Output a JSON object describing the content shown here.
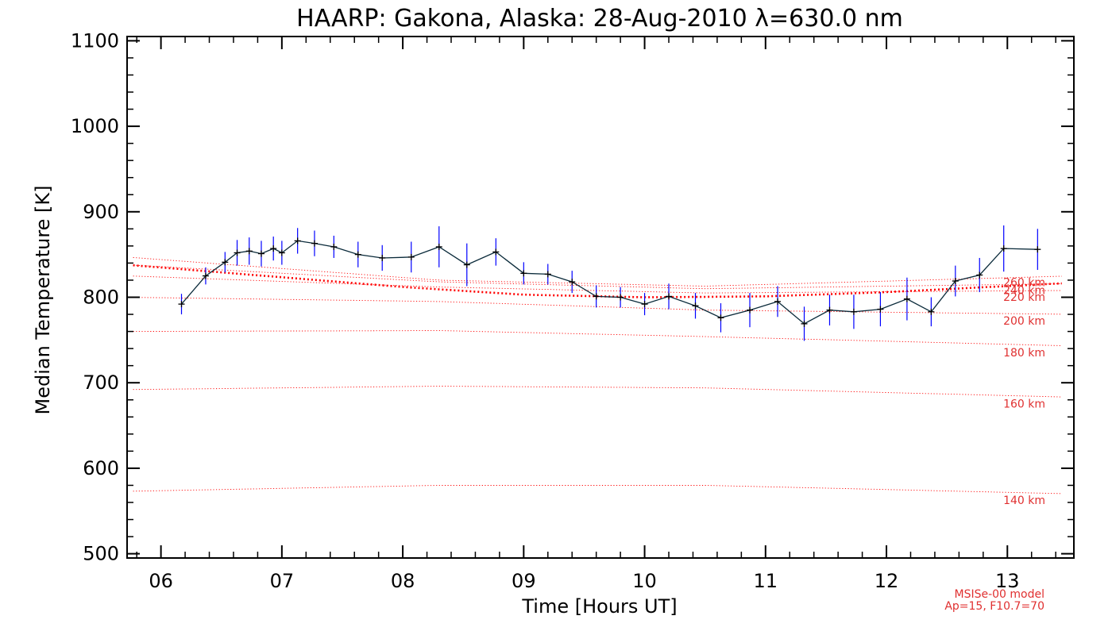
{
  "chart_data": {
    "type": "line",
    "title": "HAARP: Gakona,  Alaska: 28-Aug-2010 λ=630.0 nm",
    "xlabel": "Time [Hours UT]",
    "ylabel": "Median Temperature [K]",
    "xlim": [
      5.72,
      13.55
    ],
    "ylim": [
      495,
      1105
    ],
    "x_ticks": [
      6,
      7,
      8,
      9,
      10,
      11,
      12,
      13
    ],
    "x_tick_labels": [
      "06",
      "07",
      "08",
      "09",
      "10",
      "11",
      "12",
      "13"
    ],
    "y_ticks": [
      500,
      600,
      700,
      800,
      900,
      1000,
      1100
    ],
    "y_tick_labels": [
      "500",
      "600",
      "700",
      "800",
      "900",
      "1000",
      "1100"
    ],
    "grid": false,
    "series": [
      {
        "style": "line with crosses and vertical error bars",
        "colors": {
          "line": "#000000",
          "error_bars": "#0000ff"
        },
        "points": [
          {
            "x": 6.17,
            "y": 792,
            "err": 12
          },
          {
            "x": 6.37,
            "y": 825,
            "err": 10
          },
          {
            "x": 6.53,
            "y": 841,
            "err": 12
          },
          {
            "x": 6.63,
            "y": 852,
            "err": 15
          },
          {
            "x": 6.73,
            "y": 854,
            "err": 16
          },
          {
            "x": 6.83,
            "y": 851,
            "err": 15
          },
          {
            "x": 6.93,
            "y": 857,
            "err": 14
          },
          {
            "x": 7.0,
            "y": 852,
            "err": 14
          },
          {
            "x": 7.13,
            "y": 866,
            "err": 15
          },
          {
            "x": 7.27,
            "y": 863,
            "err": 15
          },
          {
            "x": 7.43,
            "y": 859,
            "err": 13
          },
          {
            "x": 7.63,
            "y": 850,
            "err": 15
          },
          {
            "x": 7.83,
            "y": 846,
            "err": 15
          },
          {
            "x": 8.07,
            "y": 847,
            "err": 18
          },
          {
            "x": 8.3,
            "y": 859,
            "err": 24
          },
          {
            "x": 8.53,
            "y": 838,
            "err": 25
          },
          {
            "x": 8.77,
            "y": 853,
            "err": 16
          },
          {
            "x": 9.0,
            "y": 828,
            "err": 13
          },
          {
            "x": 9.2,
            "y": 827,
            "err": 12
          },
          {
            "x": 9.4,
            "y": 818,
            "err": 13
          },
          {
            "x": 9.6,
            "y": 801,
            "err": 13
          },
          {
            "x": 9.8,
            "y": 800,
            "err": 12
          },
          {
            "x": 10.0,
            "y": 792,
            "err": 13
          },
          {
            "x": 10.2,
            "y": 801,
            "err": 15
          },
          {
            "x": 10.42,
            "y": 790,
            "err": 15
          },
          {
            "x": 10.63,
            "y": 776,
            "err": 17
          },
          {
            "x": 10.87,
            "y": 785,
            "err": 20
          },
          {
            "x": 11.1,
            "y": 795,
            "err": 18
          },
          {
            "x": 11.32,
            "y": 769,
            "err": 20
          },
          {
            "x": 11.53,
            "y": 785,
            "err": 18
          },
          {
            "x": 11.73,
            "y": 783,
            "err": 20
          },
          {
            "x": 11.95,
            "y": 786,
            "err": 20
          },
          {
            "x": 12.17,
            "y": 798,
            "err": 25
          },
          {
            "x": 12.37,
            "y": 783,
            "err": 17
          },
          {
            "x": 12.57,
            "y": 819,
            "err": 18
          },
          {
            "x": 12.77,
            "y": 826,
            "err": 20
          },
          {
            "x": 12.97,
            "y": 857,
            "err": 27
          },
          {
            "x": 13.25,
            "y": 856,
            "err": 24
          }
        ]
      }
    ],
    "model": {
      "color": "#ff0000",
      "line_style": "dotted",
      "x": [
        5.72,
        8.3,
        10.5,
        13.55
      ],
      "altitude_curves": [
        {
          "label": "140 km",
          "values": [
            573,
            580,
            580,
            570
          ]
        },
        {
          "label": "160 km",
          "values": [
            692,
            696,
            694,
            683
          ]
        },
        {
          "label": "180 km",
          "values": [
            760,
            761,
            754,
            743
          ]
        },
        {
          "label": "200 km",
          "values": [
            800,
            795,
            785,
            780
          ]
        },
        {
          "label": "220 km",
          "values": [
            825,
            812,
            805,
            808
          ]
        },
        {
          "label": "240 km",
          "values": [
            838,
            818,
            810,
            816
          ]
        },
        {
          "label": "260 km",
          "values": [
            847,
            820,
            813,
            825
          ]
        }
      ],
      "bold_curve": {
        "x": [
          5.72,
          8.0,
          9.0,
          10.0,
          11.0,
          12.0,
          13.55
        ],
        "values": [
          838,
          812,
          803,
          800,
          801,
          806,
          817
        ]
      },
      "notes": [
        "MSISe-00 model",
        "Ap=15, F10.7=70"
      ]
    }
  }
}
